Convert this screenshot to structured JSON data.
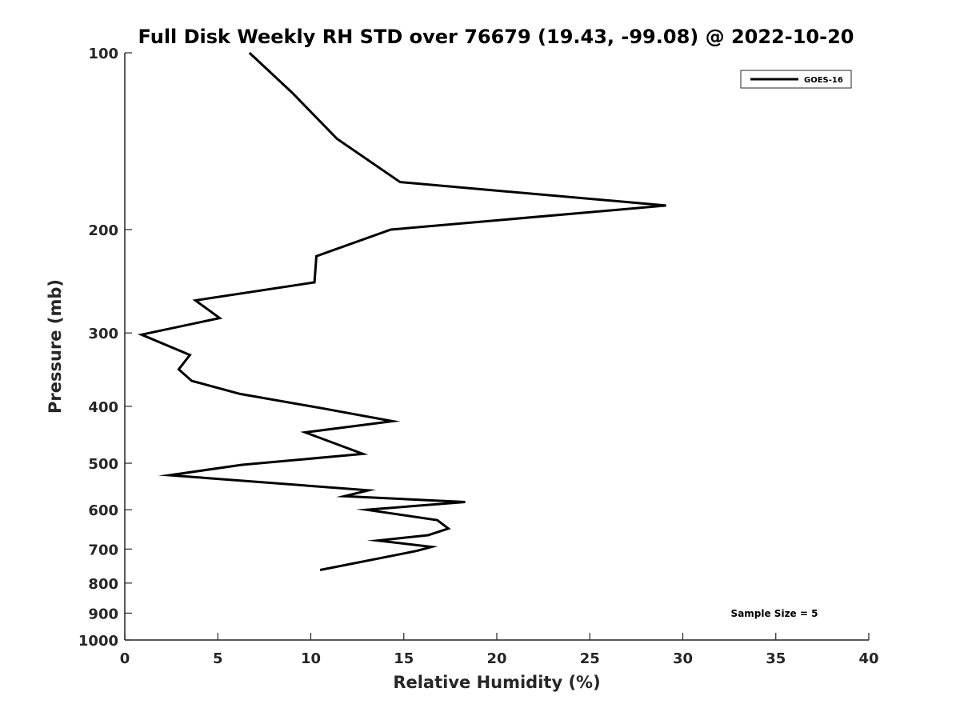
{
  "chart_data": {
    "type": "line",
    "title": "Full Disk Weekly RH STD over 76679 (19.43, -99.08) @ 2022-10-20",
    "xlabel": "Relative Humidity (%)",
    "ylabel": "Pressure (mb)",
    "xlim": [
      0,
      40
    ],
    "ylim": [
      100,
      1000
    ],
    "yscale": "log",
    "y_inverted": true,
    "x_ticks": [
      0,
      5,
      10,
      15,
      20,
      25,
      30,
      35,
      40
    ],
    "x_tick_labels": [
      "0",
      "5",
      "10",
      "15",
      "20",
      "25",
      "30",
      "35",
      "40"
    ],
    "y_ticks": [
      100,
      200,
      300,
      400,
      500,
      600,
      700,
      800,
      900,
      1000
    ],
    "y_tick_labels": [
      "100",
      "200",
      "300",
      "400",
      "500",
      "600",
      "700",
      "800",
      "900",
      "1000"
    ],
    "grid": false,
    "legend_position": "top-right",
    "line_color": "#000000",
    "series": [
      {
        "name": "GOES-16",
        "x": [
          6.7,
          9.0,
          11.4,
          14.8,
          29.1,
          14.3,
          10.3,
          10.2,
          3.8,
          5.1,
          0.9,
          3.5,
          2.9,
          3.6,
          6.2,
          10.6,
          14.4,
          9.7,
          12.8,
          6.3,
          2.4,
          13.1,
          11.8,
          18.3,
          13.0,
          16.8,
          17.4,
          16.3,
          13.6,
          16.5,
          15.7,
          10.5
        ],
        "y": [
          100,
          117,
          140,
          166,
          182,
          200,
          222,
          246,
          264,
          283,
          302,
          327,
          346,
          362,
          381,
          403,
          424,
          443,
          482,
          503,
          524,
          556,
          569,
          582,
          600,
          625,
          646,
          663,
          677,
          694,
          705,
          760
        ]
      }
    ],
    "annotations": [
      "Sample Size = 5"
    ]
  }
}
